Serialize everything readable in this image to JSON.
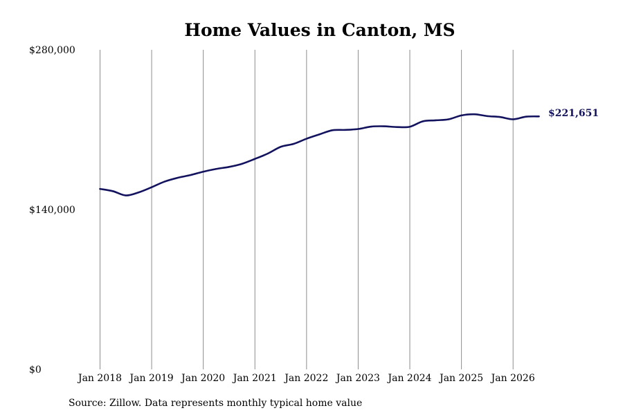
{
  "chart_data": {
    "type": "line",
    "title": "Home Values in Canton, MS",
    "source_note": "Source: Zillow. Data represents monthly typical home value",
    "xlabel": "",
    "ylabel": "",
    "x_range": [
      "2018-01",
      "2026-07"
    ],
    "ylim": [
      0,
      280000
    ],
    "y_ticks": [
      {
        "value": 0,
        "label": "$0"
      },
      {
        "value": 140000,
        "label": "$140,000"
      },
      {
        "value": 280000,
        "label": "$280,000"
      }
    ],
    "x_ticks": [
      {
        "date": "2018-01",
        "label": "Jan 2018"
      },
      {
        "date": "2019-01",
        "label": "Jan 2019"
      },
      {
        "date": "2020-01",
        "label": "Jan 2020"
      },
      {
        "date": "2021-01",
        "label": "Jan 2021"
      },
      {
        "date": "2022-01",
        "label": "Jan 2022"
      },
      {
        "date": "2023-01",
        "label": "Jan 2023"
      },
      {
        "date": "2024-01",
        "label": "Jan 2024"
      },
      {
        "date": "2025-01",
        "label": "Jan 2025"
      },
      {
        "date": "2026-01",
        "label": "Jan 2026"
      }
    ],
    "grid": {
      "vertical": true,
      "horizontal": false
    },
    "line_color": "#12125e",
    "end_label": "$221,651",
    "series": [
      {
        "name": "",
        "points": [
          {
            "x": "2018-01",
            "y": 158100
          },
          {
            "x": "2018-04",
            "y": 156100
          },
          {
            "x": "2018-07",
            "y": 152400
          },
          {
            "x": "2018-10",
            "y": 155100
          },
          {
            "x": "2019-01",
            "y": 159600
          },
          {
            "x": "2019-04",
            "y": 164500
          },
          {
            "x": "2019-07",
            "y": 167800
          },
          {
            "x": "2019-10",
            "y": 170200
          },
          {
            "x": "2020-01",
            "y": 173200
          },
          {
            "x": "2020-04",
            "y": 175600
          },
          {
            "x": "2020-07",
            "y": 177400
          },
          {
            "x": "2020-10",
            "y": 180100
          },
          {
            "x": "2021-01",
            "y": 184400
          },
          {
            "x": "2021-04",
            "y": 189100
          },
          {
            "x": "2021-07",
            "y": 195000
          },
          {
            "x": "2021-10",
            "y": 197600
          },
          {
            "x": "2022-01",
            "y": 202100
          },
          {
            "x": "2022-04",
            "y": 205900
          },
          {
            "x": "2022-07",
            "y": 209500
          },
          {
            "x": "2022-10",
            "y": 209800
          },
          {
            "x": "2023-01",
            "y": 210600
          },
          {
            "x": "2023-04",
            "y": 212700
          },
          {
            "x": "2023-07",
            "y": 213000
          },
          {
            "x": "2023-10",
            "y": 212300
          },
          {
            "x": "2024-01",
            "y": 212600
          },
          {
            "x": "2024-04",
            "y": 217300
          },
          {
            "x": "2024-07",
            "y": 218200
          },
          {
            "x": "2024-10",
            "y": 219100
          },
          {
            "x": "2025-01",
            "y": 222500
          },
          {
            "x": "2025-04",
            "y": 223500
          },
          {
            "x": "2025-07",
            "y": 221900
          },
          {
            "x": "2025-10",
            "y": 221100
          },
          {
            "x": "2026-01",
            "y": 219100
          },
          {
            "x": "2026-04",
            "y": 221400
          },
          {
            "x": "2026-07",
            "y": 221651
          }
        ]
      }
    ]
  }
}
